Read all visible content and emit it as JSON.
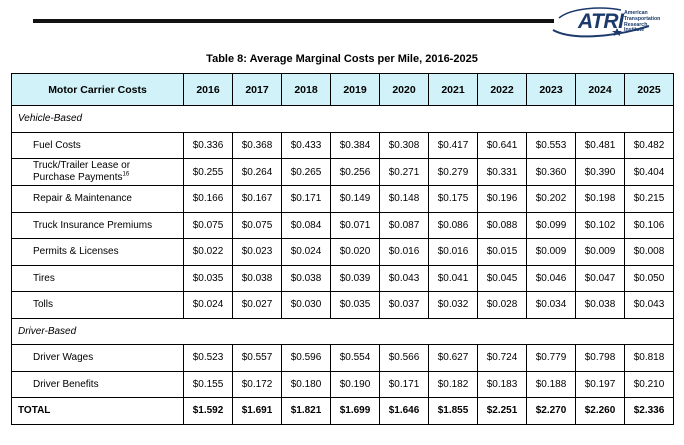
{
  "logo": {
    "name": "ATRI",
    "line1": "American",
    "line2": "Transportation",
    "line3": "Research",
    "line4": "Institute"
  },
  "caption": "Table 8: Average Marginal Costs per Mile, 2016-2025",
  "table": {
    "header_label": "Motor Carrier Costs",
    "years": [
      "2016",
      "2017",
      "2018",
      "2019",
      "2020",
      "2021",
      "2022",
      "2023",
      "2024",
      "2025"
    ],
    "sections": {
      "vehicle": "Vehicle-Based",
      "driver": "Driver-Based"
    },
    "rows": [
      {
        "label": "Fuel Costs",
        "values": [
          "$0.336",
          "$0.368",
          "$0.433",
          "$0.384",
          "$0.308",
          "$0.417",
          "$0.641",
          "$0.553",
          "$0.481",
          "$0.482"
        ]
      },
      {
        "label_line1": "Truck/Trailer Lease or",
        "label_line2": "Purchase Payments",
        "footnote": "16",
        "values": [
          "$0.255",
          "$0.264",
          "$0.265",
          "$0.256",
          "$0.271",
          "$0.279",
          "$0.331",
          "$0.360",
          "$0.390",
          "$0.404"
        ]
      },
      {
        "label": "Repair & Maintenance",
        "values": [
          "$0.166",
          "$0.167",
          "$0.171",
          "$0.149",
          "$0.148",
          "$0.175",
          "$0.196",
          "$0.202",
          "$0.198",
          "$0.215"
        ]
      },
      {
        "label": "Truck Insurance Premiums",
        "values": [
          "$0.075",
          "$0.075",
          "$0.084",
          "$0.071",
          "$0.087",
          "$0.086",
          "$0.088",
          "$0.099",
          "$0.102",
          "$0.106"
        ]
      },
      {
        "label": "Permits & Licenses",
        "values": [
          "$0.022",
          "$0.023",
          "$0.024",
          "$0.020",
          "$0.016",
          "$0.016",
          "$0.015",
          "$0.009",
          "$0.009",
          "$0.008"
        ]
      },
      {
        "label": "Tires",
        "values": [
          "$0.035",
          "$0.038",
          "$0.038",
          "$0.039",
          "$0.043",
          "$0.041",
          "$0.045",
          "$0.046",
          "$0.047",
          "$0.050"
        ]
      },
      {
        "label": "Tolls",
        "values": [
          "$0.024",
          "$0.027",
          "$0.030",
          "$0.035",
          "$0.037",
          "$0.032",
          "$0.028",
          "$0.034",
          "$0.038",
          "$0.043"
        ]
      },
      {
        "label": "Driver Wages",
        "values": [
          "$0.523",
          "$0.557",
          "$0.596",
          "$0.554",
          "$0.566",
          "$0.627",
          "$0.724",
          "$0.779",
          "$0.798",
          "$0.818"
        ]
      },
      {
        "label": "Driver Benefits",
        "values": [
          "$0.155",
          "$0.172",
          "$0.180",
          "$0.190",
          "$0.171",
          "$0.182",
          "$0.183",
          "$0.188",
          "$0.197",
          "$0.210"
        ]
      }
    ],
    "total": {
      "label": "TOTAL",
      "values": [
        "$1.592",
        "$1.691",
        "$1.821",
        "$1.699",
        "$1.646",
        "$1.855",
        "$2.251",
        "$2.270",
        "$2.260",
        "$2.336"
      ]
    }
  }
}
